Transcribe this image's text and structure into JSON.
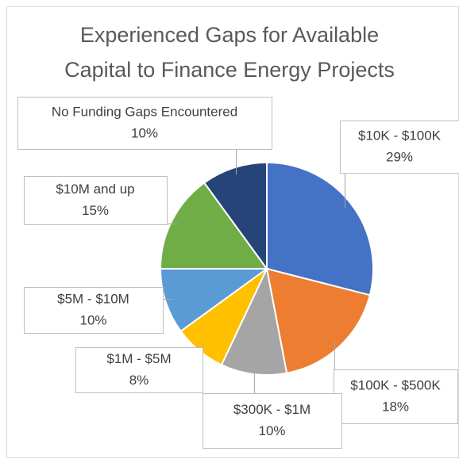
{
  "chart_data": {
    "type": "pie",
    "title": "Experienced Gaps for Available Capital to Finance Energy Projects",
    "categories": [
      "$10K - $100K",
      "$100K - $500K",
      "$300K - $1M",
      "$1M - $5M",
      "$5M - $10M",
      "$10M and up",
      "No Funding Gaps Encountered"
    ],
    "values": [
      29,
      18,
      10,
      8,
      10,
      15,
      10
    ],
    "value_labels": [
      "29%",
      "18%",
      "10%",
      "8%",
      "10%",
      "15%",
      "10%"
    ],
    "colors": [
      "#4472c4",
      "#ed7d31",
      "#a5a5a5",
      "#ffc000",
      "#5b9bd5",
      "#70ad47",
      "#264478"
    ]
  }
}
